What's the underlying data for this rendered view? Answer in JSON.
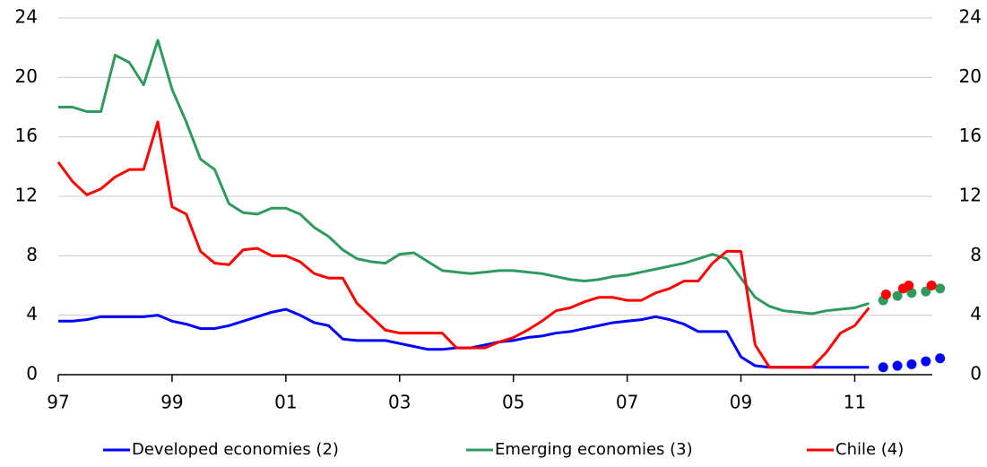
{
  "chart_data": {
    "type": "line",
    "x": [
      1997,
      1997.25,
      1997.5,
      1997.75,
      1998,
      1998.25,
      1998.5,
      1998.75,
      1999,
      1999.25,
      1999.5,
      1999.75,
      2000,
      2000.25,
      2000.5,
      2000.75,
      2001,
      2001.25,
      2001.5,
      2001.75,
      2002,
      2002.25,
      2002.5,
      2002.75,
      2003,
      2003.25,
      2003.5,
      2003.75,
      2004,
      2004.25,
      2004.5,
      2004.75,
      2005,
      2005.25,
      2005.5,
      2005.75,
      2006,
      2006.25,
      2006.5,
      2006.75,
      2007,
      2007.25,
      2007.5,
      2007.75,
      2008,
      2008.25,
      2008.5,
      2008.75,
      2009,
      2009.25,
      2009.5,
      2009.75,
      2010,
      2010.25,
      2010.5,
      2010.75,
      2011,
      2011.25
    ],
    "series": [
      {
        "name": "Developed economies (2)",
        "color": "#0000ff",
        "values": [
          3.6,
          3.6,
          3.7,
          3.9,
          3.9,
          3.9,
          3.9,
          4.0,
          3.6,
          3.4,
          3.1,
          3.1,
          3.3,
          3.6,
          3.9,
          4.2,
          4.4,
          4.0,
          3.5,
          3.3,
          2.4,
          2.3,
          2.3,
          2.3,
          2.1,
          1.9,
          1.7,
          1.7,
          1.8,
          1.8,
          2.0,
          2.2,
          2.3,
          2.5,
          2.6,
          2.8,
          2.9,
          3.1,
          3.3,
          3.5,
          3.6,
          3.7,
          3.9,
          3.7,
          3.4,
          2.9,
          2.9,
          2.9,
          1.2,
          0.6,
          0.5,
          0.5,
          0.5,
          0.5,
          0.5,
          0.5,
          0.5,
          0.5
        ],
        "forecast_x": [
          2011.5,
          2011.75,
          2012,
          2012.25,
          2012.5
        ],
        "forecast_values": [
          0.5,
          0.6,
          0.7,
          0.9,
          1.1
        ]
      },
      {
        "name": "Emerging economies (3)",
        "color": "#2e9a5e",
        "values": [
          18,
          18,
          17.7,
          17.7,
          21.5,
          21.0,
          19.5,
          22.5,
          19.2,
          17,
          14.5,
          13.8,
          11.5,
          10.9,
          10.8,
          11.2,
          11.2,
          10.8,
          9.9,
          9.3,
          8.4,
          7.8,
          7.6,
          7.5,
          8.1,
          8.2,
          7.6,
          7.0,
          6.9,
          6.8,
          6.9,
          7.0,
          7.0,
          6.9,
          6.8,
          6.6,
          6.4,
          6.3,
          6.4,
          6.6,
          6.7,
          6.9,
          7.1,
          7.3,
          7.5,
          7.8,
          8.1,
          7.8,
          6.5,
          5.2,
          4.6,
          4.3,
          4.2,
          4.1,
          4.3,
          4.4,
          4.5,
          4.8
        ],
        "forecast_x": [
          2011.5,
          2011.75,
          2012,
          2012.25,
          2012.5
        ],
        "forecast_values": [
          5.0,
          5.3,
          5.5,
          5.6,
          5.8
        ]
      },
      {
        "name": "Chile (4)",
        "color": "#ff0000",
        "values": [
          14.3,
          13.0,
          12.1,
          12.5,
          13.3,
          13.8,
          13.8,
          17.0,
          11.3,
          10.8,
          8.3,
          7.5,
          7.4,
          8.4,
          8.5,
          8.0,
          8.0,
          7.6,
          6.8,
          6.5,
          6.5,
          4.8,
          3.9,
          3.0,
          2.8,
          2.8,
          2.8,
          2.8,
          1.8,
          1.8,
          1.8,
          2.2,
          2.5,
          3.0,
          3.6,
          4.3,
          4.5,
          4.9,
          5.2,
          5.2,
          5.0,
          5.0,
          5.5,
          5.8,
          6.3,
          6.3,
          7.5,
          8.3,
          8.3,
          2.0,
          0.5,
          0.5,
          0.5,
          0.5,
          1.5,
          2.8,
          3.3,
          4.5
        ],
        "forecast_x": [
          2011.55,
          2011.85,
          2011.95,
          2012.35
        ],
        "forecast_values": [
          5.4,
          5.8,
          6.0,
          6.0
        ]
      }
    ],
    "xlim": [
      1997,
      2012.6
    ],
    "xticks": [
      {
        "value": 1997,
        "label": "97"
      },
      {
        "value": 1999,
        "label": "99"
      },
      {
        "value": 2001,
        "label": "01"
      },
      {
        "value": 2003,
        "label": "03"
      },
      {
        "value": 2005,
        "label": "05"
      },
      {
        "value": 2007,
        "label": "07"
      },
      {
        "value": 2009,
        "label": "09"
      },
      {
        "value": 2011,
        "label": "11"
      }
    ],
    "ylim": [
      0,
      24
    ],
    "yticks": [
      0,
      4,
      8,
      12,
      16,
      20,
      24
    ],
    "y2lim": [
      0,
      24
    ],
    "y2ticks": [
      0,
      4,
      8,
      12,
      16,
      20,
      24
    ],
    "grid": true
  }
}
